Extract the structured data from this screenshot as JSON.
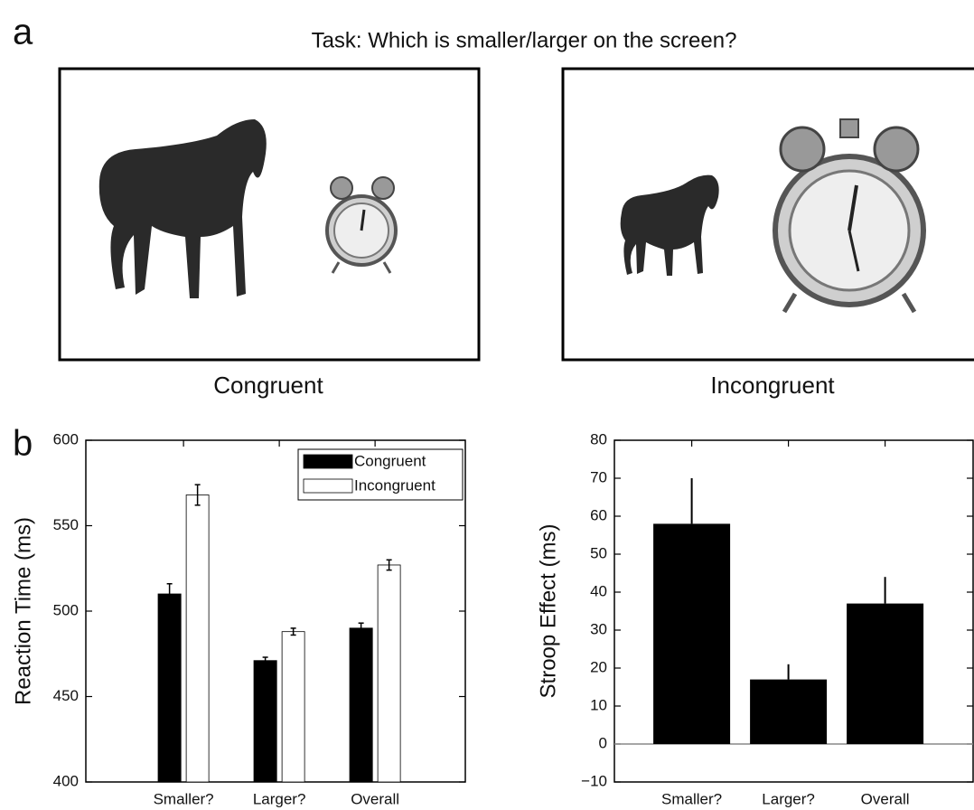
{
  "panel_a": {
    "label": "a",
    "title": "Task: Which is smaller/larger on the screen?",
    "captions": [
      "Congruent",
      "Incongruent"
    ]
  },
  "panel_b": {
    "label": "b"
  },
  "chart_data": [
    {
      "type": "grouped_bar",
      "ylabel": "Reaction Time (ms)",
      "categories": [
        "Smaller?",
        "Larger?",
        "Overall"
      ],
      "series": [
        {
          "name": "Congruent",
          "color": "#000000",
          "values": [
            510,
            471,
            490
          ],
          "errors": [
            6,
            2,
            3
          ]
        },
        {
          "name": "Incongruent",
          "color": "#ffffff",
          "values": [
            568,
            488,
            527
          ],
          "errors": [
            6,
            2,
            3
          ]
        }
      ],
      "ylim": [
        400,
        600
      ],
      "yticks": [
        400,
        450,
        500,
        550,
        600
      ],
      "grid": false,
      "legend": "upper right"
    },
    {
      "type": "bar",
      "ylabel": "Stroop Effect (ms)",
      "categories": [
        "Smaller?",
        "Larger?",
        "Overall"
      ],
      "values": [
        58,
        17,
        37
      ],
      "errors": [
        12,
        4,
        7
      ],
      "color": "#000000",
      "ylim": [
        -10,
        80
      ],
      "yticks": [
        {
          "value": -10,
          "label": "−10"
        },
        0,
        10,
        20,
        30,
        40,
        50,
        60,
        70,
        80
      ],
      "grid": false
    }
  ]
}
